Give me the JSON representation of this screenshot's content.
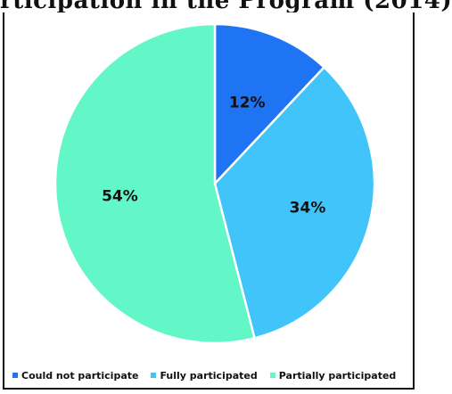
{
  "title_partial": "rticipation in the Program (2014)",
  "chart_data": {
    "type": "pie",
    "slices": [
      {
        "label": "Could not participate",
        "value": 12,
        "display": "12%",
        "color": "#1f74f4"
      },
      {
        "label": "Fully participated",
        "value": 34,
        "display": "34%",
        "color": "#40c4fa"
      },
      {
        "label": "Partially participated",
        "value": 54,
        "display": "54%",
        "color": "#63f7c8"
      }
    ],
    "legend_position": "bottom",
    "start_angle": "top, clockwise"
  }
}
